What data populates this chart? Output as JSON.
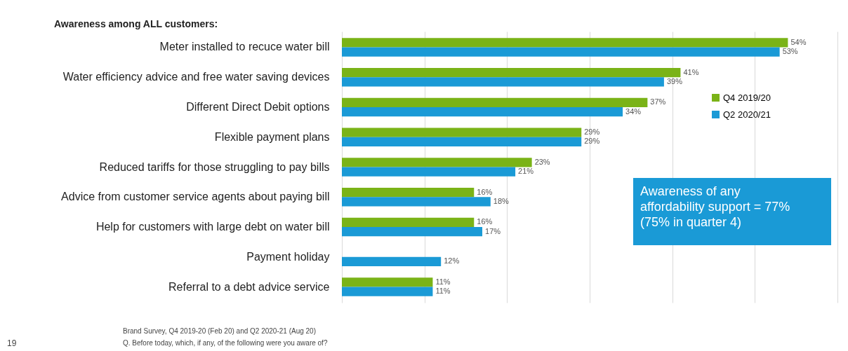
{
  "chart_data": {
    "type": "bar",
    "orientation": "horizontal",
    "title": "Awareness among ALL customers:",
    "categories": [
      "Meter installed to recuce water bill",
      "Water efficiency advice and free water saving devices",
      "Different Direct Debit options",
      "Flexible payment plans",
      "Reduced tariffs for those struggling to pay bills",
      "Advice from customer service agents about paying bill",
      "Help for customers with large debt on water bill",
      "Payment holiday",
      "Referral to a debt advice service"
    ],
    "series": [
      {
        "name": "Q4 2019/20",
        "color": "#7ab317",
        "values": [
          54,
          41,
          37,
          29,
          23,
          16,
          16,
          null,
          11
        ],
        "value_labels": [
          "54%",
          "41%",
          "37%",
          "29%",
          "23%",
          "16%",
          "16%",
          null,
          "11%"
        ]
      },
      {
        "name": "Q2 2020/21",
        "color": "#1a9ad6",
        "values": [
          53,
          39,
          34,
          29,
          21,
          18,
          17,
          12,
          11
        ],
        "value_labels": [
          "53%",
          "39%",
          "34%",
          "29%",
          "21%",
          "18%",
          "17%",
          "12%",
          "11%"
        ]
      }
    ],
    "xlim": [
      0,
      60
    ],
    "xticks": [
      {
        "value": 0,
        "label": null
      },
      {
        "value": 10,
        "label": null
      },
      {
        "value": 20,
        "label": null
      },
      {
        "value": 30,
        "label": null
      },
      {
        "value": 40,
        "label": null
      },
      {
        "value": 50,
        "label": null
      },
      {
        "value": 60,
        "label": null
      }
    ],
    "grid": "x",
    "tick_labels": "y",
    "legend": "right",
    "annotations": [
      "Awareness of any affordability support = 77% (75% in quarter 4)",
      "Brand Survey, Q4 2019-20 (Feb 20) and Q2 2020-21 (Aug 20)",
      "Q. Before today, which, if any, of the following were you aware of?",
      "19"
    ]
  }
}
